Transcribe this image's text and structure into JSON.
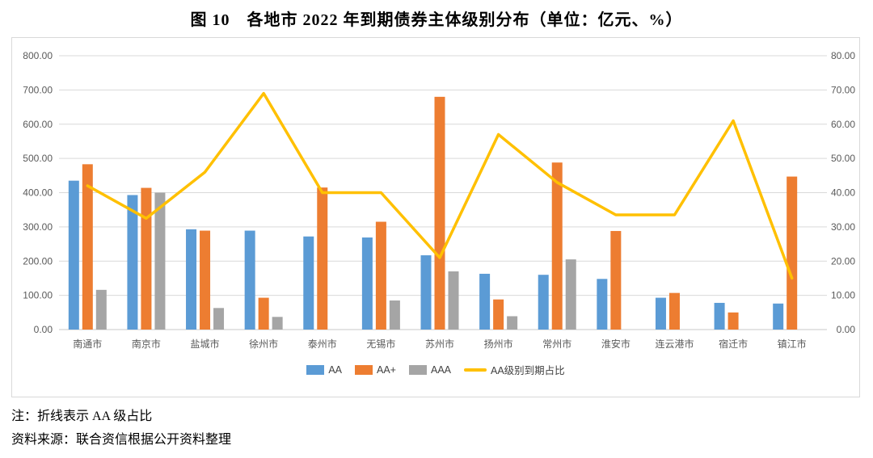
{
  "title": "图 10　各地市 2022 年到期债券主体级别分布（单位：亿元、%）",
  "notes": {
    "line1": "注：折线表示 AA 级占比",
    "line2": "资料来源：联合资信根据公开资料整理"
  },
  "chart_data": {
    "type": "bar",
    "subtype": "grouped-bars-with-line",
    "title": "图 10　各地市 2022 年到期债券主体级别分布（单位：亿元、%）",
    "categories": [
      "南通市",
      "南京市",
      "盐城市",
      "徐州市",
      "泰州市",
      "无锡市",
      "苏州市",
      "扬州市",
      "常州市",
      "淮安市",
      "连云港市",
      "宿迁市",
      "镇江市"
    ],
    "series": [
      {
        "name": "AA",
        "type": "bar",
        "axis": "left",
        "color": "#5B9BD5",
        "values": [
          435,
          393,
          293,
          289,
          272,
          269,
          217,
          163,
          160,
          148,
          93,
          78,
          76
        ]
      },
      {
        "name": "AA+",
        "type": "bar",
        "axis": "left",
        "color": "#ED7D31",
        "values": [
          483,
          414,
          289,
          93,
          415,
          315,
          680,
          88,
          488,
          288,
          107,
          50,
          447
        ]
      },
      {
        "name": "AAA",
        "type": "bar",
        "axis": "left",
        "color": "#A5A5A5",
        "values": [
          116,
          400,
          63,
          37,
          0,
          85,
          170,
          39,
          205,
          0,
          0,
          0,
          0
        ]
      },
      {
        "name": "AA级别到期占比",
        "type": "line",
        "axis": "right",
        "color": "#FFC000",
        "values": [
          42,
          32.5,
          46,
          69,
          40,
          40,
          21,
          57,
          43,
          33.5,
          33.5,
          61,
          15
        ]
      }
    ],
    "left_axis": {
      "min": 0,
      "max": 800,
      "step": 100,
      "ticks": [
        "0.00",
        "100.00",
        "200.00",
        "300.00",
        "400.00",
        "500.00",
        "600.00",
        "700.00",
        "800.00"
      ]
    },
    "right_axis": {
      "min": 0,
      "max": 80,
      "step": 10,
      "ticks": [
        "0.00",
        "10.00",
        "20.00",
        "30.00",
        "40.00",
        "50.00",
        "60.00",
        "70.00",
        "80.00"
      ]
    },
    "grid": "horizontal",
    "legend_position": "bottom",
    "colors": {
      "grid": "#D9D9D9",
      "axis_text": "#595959",
      "panel_border": "#D9D9D9"
    }
  }
}
